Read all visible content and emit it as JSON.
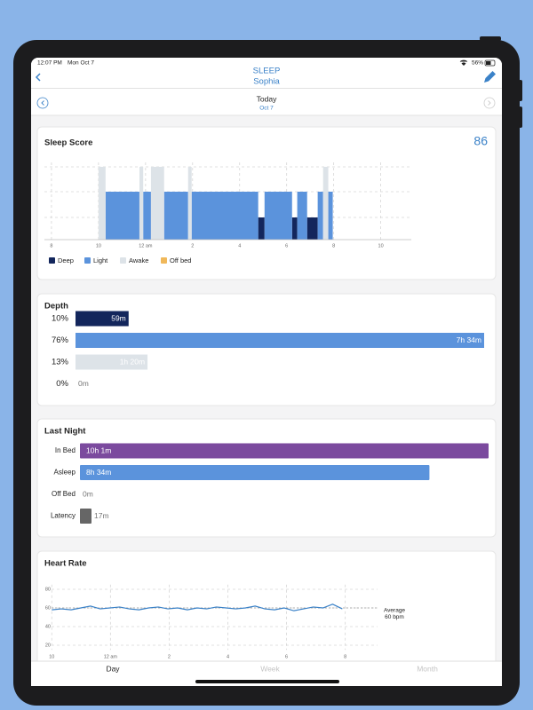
{
  "status_bar": {
    "time": "12:07 PM",
    "date": "Mon Oct 7",
    "battery": "56%"
  },
  "nav": {
    "title": "SLEEP",
    "subtitle": "Sophia"
  },
  "date_nav": {
    "day": "Today",
    "date": "Oct 7"
  },
  "sleep_score": {
    "title": "Sleep Score",
    "score": 86,
    "xlim": [
      19.7,
      35.3
    ],
    "xticks": [
      {
        "value": 20,
        "label": "8"
      },
      {
        "value": 22,
        "label": "10"
      },
      {
        "value": 24,
        "label": "12 am"
      },
      {
        "value": 26,
        "label": "2"
      },
      {
        "value": 28,
        "label": "4"
      },
      {
        "value": 30,
        "label": "6"
      },
      {
        "value": 32,
        "label": "8"
      },
      {
        "value": 34,
        "label": "10"
      }
    ],
    "stages": [
      {
        "name": "Deep",
        "color": "#13265c",
        "segments": [
          [
            28.79,
            29.06
          ],
          [
            30.23,
            30.45
          ],
          [
            30.87,
            31.32
          ]
        ]
      },
      {
        "name": "Light",
        "color": "#5b93dc",
        "segments": [
          [
            22.3,
            23.74
          ],
          [
            23.9,
            24.23
          ],
          [
            24.79,
            25.81
          ],
          [
            25.96,
            28.79
          ],
          [
            29.06,
            30.23
          ],
          [
            30.45,
            30.87
          ],
          [
            31.32,
            31.55
          ],
          [
            31.77,
            31.96
          ]
        ]
      },
      {
        "name": "Awake",
        "color": "#dde3e8",
        "segments": [
          [
            22.0,
            22.3
          ],
          [
            23.74,
            23.9
          ],
          [
            24.23,
            24.79
          ],
          [
            25.81,
            25.96
          ],
          [
            31.55,
            31.77
          ]
        ]
      },
      {
        "name": "Off bed",
        "color": "#f0b85a",
        "segments": []
      }
    ]
  },
  "depth": {
    "title": "Depth",
    "rows": [
      {
        "percent": "10%",
        "minutes": 59,
        "label": "59m",
        "color": "#13265c"
      },
      {
        "percent": "76%",
        "minutes": 454,
        "label": "7h 34m",
        "color": "#5b93dc"
      },
      {
        "percent": "13%",
        "minutes": 80,
        "label": "1h 20m",
        "color": "#dde3e8"
      },
      {
        "percent": "0%",
        "minutes": 0,
        "label": "0m",
        "color": "#f0b85a"
      }
    ]
  },
  "last_night": {
    "title": "Last Night",
    "rows": [
      {
        "name": "In Bed",
        "minutes": 601,
        "label": "10h 1m",
        "color": "#7b4a9e"
      },
      {
        "name": "Asleep",
        "minutes": 514,
        "label": "8h 34m",
        "color": "#5b93dc"
      },
      {
        "name": "Off Bed",
        "minutes": 0,
        "label": "0m",
        "color": "#f0b85a"
      },
      {
        "name": "Latency",
        "minutes": 17,
        "label": "17m",
        "color": "#666666"
      }
    ]
  },
  "heart_rate": {
    "title": "Heart Rate",
    "type": "line",
    "xlim": [
      21.75,
      33.1
    ],
    "ylim": [
      15,
      85
    ],
    "xticks": [
      {
        "value": 22,
        "label": "10"
      },
      {
        "value": 24,
        "label": "12 am"
      },
      {
        "value": 26,
        "label": "2"
      },
      {
        "value": 28,
        "label": "4"
      },
      {
        "value": 30,
        "label": "6"
      },
      {
        "value": 32,
        "label": "8"
      }
    ],
    "yticks": [
      20,
      40,
      60,
      80
    ],
    "x": [
      22,
      22.33,
      22.66,
      22.99,
      23.32,
      23.65,
      23.98,
      24.31,
      24.64,
      24.97,
      25.3,
      25.63,
      25.96,
      26.29,
      26.62,
      26.95,
      27.28,
      27.61,
      27.94,
      28.27,
      28.6,
      28.93,
      29.26,
      29.59,
      29.92,
      30.25,
      30.58,
      30.91,
      31.24,
      31.57,
      31.9
    ],
    "values": [
      58,
      59,
      58,
      60,
      62,
      59,
      60,
      61,
      59,
      58,
      60,
      61,
      59,
      60,
      58,
      60,
      59,
      61,
      60,
      59,
      60,
      62,
      59,
      58,
      60,
      57,
      59,
      61,
      60,
      64,
      59
    ],
    "color": "#3b82c8",
    "average": {
      "label": "Average",
      "value": 60,
      "value_label": "60 bpm"
    }
  },
  "tabs": [
    "Day",
    "Week",
    "Month"
  ]
}
